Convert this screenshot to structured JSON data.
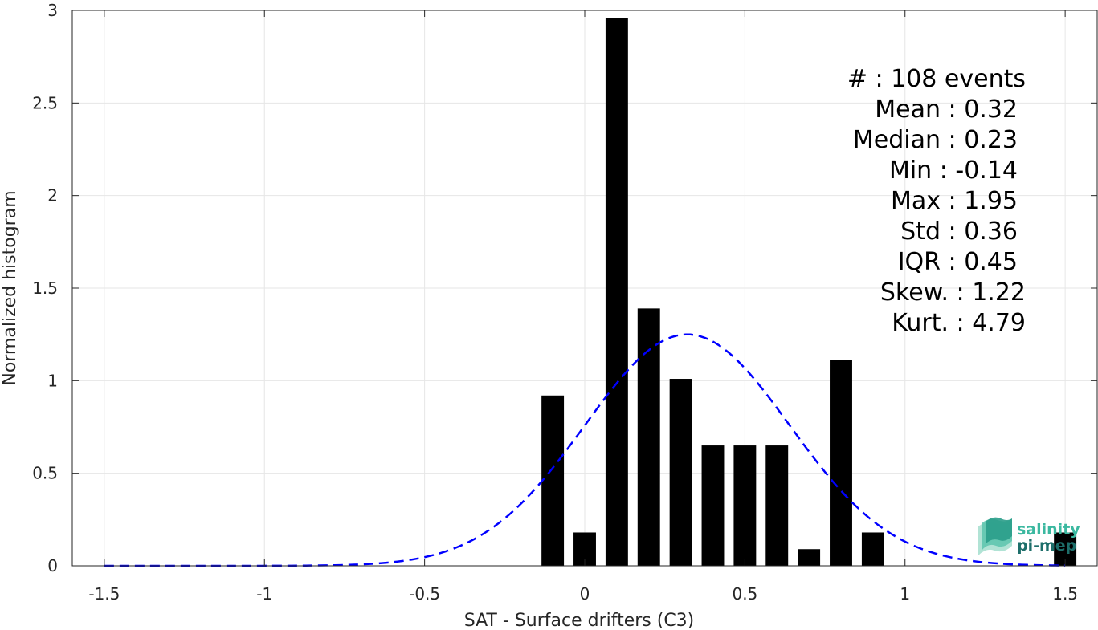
{
  "chart_data": {
    "type": "bar",
    "xlabel": "SAT - Surface drifters (C3)",
    "ylabel": "Normalized histogram",
    "xlim": [
      -1.6,
      1.6
    ],
    "ylim": [
      0,
      3
    ],
    "grid": true,
    "x_ticks": [
      -1.5,
      -1,
      -0.5,
      0,
      0.5,
      1,
      1.5
    ],
    "x_tick_labels": [
      "-1.5",
      "-1",
      "-0.5",
      "0",
      "0.5",
      "1",
      "1.5"
    ],
    "y_ticks": [
      0,
      0.5,
      1,
      1.5,
      2,
      2.5,
      3
    ],
    "y_tick_labels": [
      "0",
      "0.5",
      "1",
      "1.5",
      "2",
      "2.5",
      "3"
    ],
    "bin_width": 0.07,
    "bars": [
      {
        "x": -0.1,
        "y": 0.92
      },
      {
        "x": 0.0,
        "y": 0.18
      },
      {
        "x": 0.1,
        "y": 2.96
      },
      {
        "x": 0.2,
        "y": 1.39
      },
      {
        "x": 0.3,
        "y": 1.01
      },
      {
        "x": 0.4,
        "y": 0.65
      },
      {
        "x": 0.5,
        "y": 0.65
      },
      {
        "x": 0.6,
        "y": 0.65
      },
      {
        "x": 0.7,
        "y": 0.09
      },
      {
        "x": 0.8,
        "y": 1.11
      },
      {
        "x": 0.9,
        "y": 0.18
      },
      {
        "x": 1.5,
        "y": 0.18
      }
    ],
    "gaussian_fit": {
      "mean": 0.32,
      "std": 0.32,
      "peak": 1.25,
      "x_range": [
        -1.5,
        1.5
      ],
      "color": "#0000ff",
      "style": "dashed"
    },
    "bar_color": "#000000"
  },
  "stats": {
    "events": "#  : 108 events",
    "mean": "Mean : 0.32",
    "median": "Median : 0.23",
    "min": "Min : -0.14",
    "max": "Max : 1.95",
    "std": "Std : 0.36",
    "iqr": "IQR : 0.45",
    "skew": "Skew. : 1.22",
    "kurt": "Kurt. : 4.79"
  },
  "logo": {
    "line1": "salinity",
    "line2": "pi-mep",
    "color1": "#3bb8a0",
    "color2": "#1d6e6a"
  }
}
